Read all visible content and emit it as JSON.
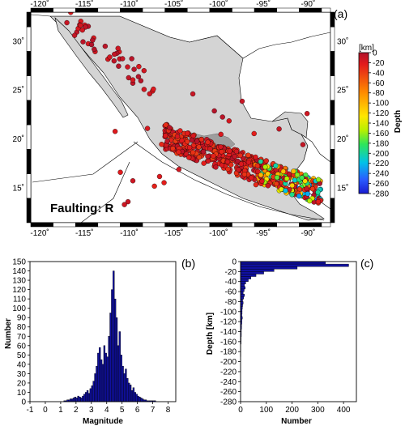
{
  "map": {
    "panel_label": "(a)",
    "annotation": "Faulting: R",
    "lon_ticks": [
      "-120˚",
      "-115˚",
      "-110˚",
      "-105˚",
      "-100˚",
      "-95˚",
      "-90˚"
    ],
    "lat_ticks": [
      "30˚",
      "25˚",
      "20˚",
      "15˚"
    ],
    "colorbar": {
      "unit": "[km]",
      "title": "Depth",
      "ticks": [
        "0",
        "-20",
        "-40",
        "-60",
        "-80",
        "-100",
        "-120",
        "-140",
        "-160",
        "-180",
        "-200",
        "-220",
        "-240",
        "-260",
        "-280"
      ]
    },
    "colors": {
      "land_mexico": "#d4d4d4",
      "land_other": "#ffffff",
      "highland": "#9e9e9e",
      "event_shallow": "#d11b1b"
    }
  },
  "chart_data": [
    {
      "type": "bar",
      "panel_label": "(b)",
      "title": "",
      "xlabel": "Magnitude",
      "ylabel": "Number",
      "xlim": [
        -1,
        8.5
      ],
      "ylim": [
        0,
        150
      ],
      "xticks": [
        "-1",
        "0",
        "1",
        "2",
        "3",
        "4",
        "5",
        "6",
        "7",
        "8"
      ],
      "yticks": [
        "0",
        "10",
        "20",
        "30",
        "40",
        "50",
        "60",
        "70",
        "80",
        "90",
        "100",
        "110",
        "120",
        "130",
        "140",
        "150"
      ],
      "bin_width": 0.1,
      "bin_start": 1.2,
      "values": [
        1,
        1,
        2,
        2,
        3,
        3,
        4,
        5,
        4,
        6,
        5,
        4,
        6,
        8,
        10,
        12,
        9,
        14,
        17,
        22,
        30,
        38,
        52,
        58,
        45,
        40,
        60,
        52,
        48,
        70,
        95,
        120,
        140,
        110,
        90,
        60,
        75,
        50,
        38,
        30,
        35,
        25,
        20,
        18,
        12,
        15,
        10,
        8,
        6,
        5,
        4,
        3,
        2,
        2,
        1,
        1,
        1,
        1,
        1,
        1
      ]
    },
    {
      "type": "bar",
      "orientation": "horizontal",
      "panel_label": "(c)",
      "title": "",
      "xlabel": "Number",
      "ylabel": "Depth [km]",
      "xlim": [
        0,
        450
      ],
      "ylim": [
        -280,
        0
      ],
      "xticks": [
        "0",
        "100",
        "200",
        "300",
        "400"
      ],
      "yticks": [
        "0",
        "-20",
        "-40",
        "-60",
        "-80",
        "-100",
        "-120",
        "-140",
        "-160",
        "-180",
        "-200",
        "-220",
        "-240",
        "-260",
        "-280"
      ],
      "bin_height": 5,
      "values": [
        330,
        420,
        220,
        130,
        90,
        60,
        40,
        30,
        20,
        15,
        18,
        14,
        10,
        15,
        12,
        8,
        10,
        8,
        7,
        6,
        6,
        5,
        7,
        5,
        5,
        4,
        4,
        3,
        3,
        3,
        2,
        2,
        2,
        1,
        1,
        1,
        1,
        1
      ]
    }
  ]
}
